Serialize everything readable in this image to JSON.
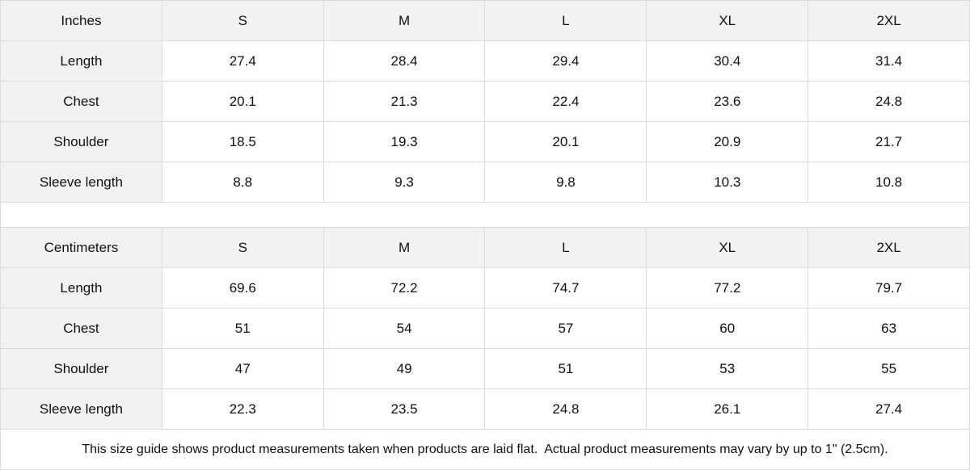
{
  "tables": [
    {
      "unit": "Inches",
      "sizes": [
        "S",
        "M",
        "L",
        "XL",
        "2XL"
      ],
      "rows": [
        {
          "label": "Length",
          "values": [
            "27.4",
            "28.4",
            "29.4",
            "30.4",
            "31.4"
          ]
        },
        {
          "label": "Chest",
          "values": [
            "20.1",
            "21.3",
            "22.4",
            "23.6",
            "24.8"
          ]
        },
        {
          "label": "Shoulder",
          "values": [
            "18.5",
            "19.3",
            "20.1",
            "20.9",
            "21.7"
          ]
        },
        {
          "label": "Sleeve length",
          "values": [
            "8.8",
            "9.3",
            "9.8",
            "10.3",
            "10.8"
          ]
        }
      ]
    },
    {
      "unit": "Centimeters",
      "sizes": [
        "S",
        "M",
        "L",
        "XL",
        "2XL"
      ],
      "rows": [
        {
          "label": "Length",
          "values": [
            "69.6",
            "72.2",
            "74.7",
            "77.2",
            "79.7"
          ]
        },
        {
          "label": "Chest",
          "values": [
            "51",
            "54",
            "57",
            "60",
            "63"
          ]
        },
        {
          "label": "Shoulder",
          "values": [
            "47",
            "49",
            "51",
            "53",
            "55"
          ]
        },
        {
          "label": "Sleeve length",
          "values": [
            "22.3",
            "23.5",
            "24.8",
            "26.1",
            "27.4"
          ]
        }
      ]
    }
  ],
  "note": "This size guide shows product measurements taken when products are laid flat.  Actual product measurements may vary by up to 1\" (2.5cm)."
}
